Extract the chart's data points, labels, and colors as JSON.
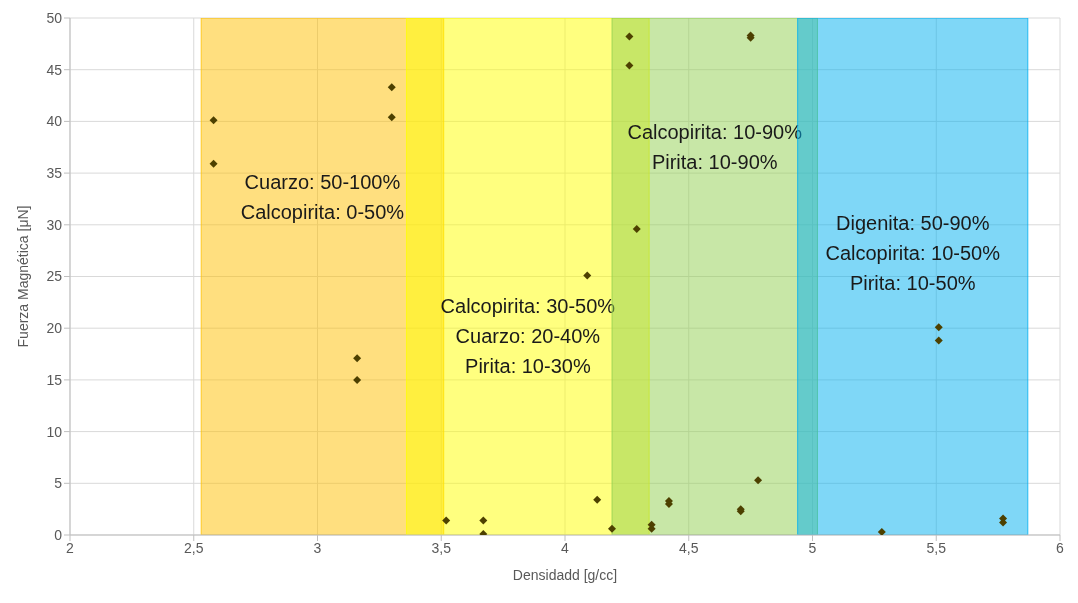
{
  "chart_data": {
    "type": "scatter",
    "xlabel": "Densidadd [g/cc]",
    "ylabel": "Fuerza Magnética [μN]",
    "xlim": [
      2,
      6
    ],
    "ylim": [
      0,
      50
    ],
    "xticks": [
      2,
      {
        "value": 2.5,
        "label": "2,5"
      },
      3,
      {
        "value": 3.5,
        "label": "3,5"
      },
      4,
      {
        "value": 4.5,
        "label": "4,5"
      },
      5,
      {
        "value": 5.5,
        "label": "5,5"
      },
      6
    ],
    "yticks": [
      0,
      5,
      10,
      15,
      20,
      25,
      30,
      35,
      40,
      45,
      50
    ],
    "grid": true,
    "marker": "diamond",
    "series": [
      {
        "color": "#4d4000",
        "x": [
          2.58,
          2.58,
          3.3,
          3.3,
          3.16,
          3.16,
          3.52,
          3.67,
          3.67,
          4.09,
          4.13,
          4.19,
          4.26,
          4.26,
          4.29,
          4.35,
          4.35,
          4.42,
          4.42,
          4.71,
          4.71,
          4.75,
          4.75,
          4.78,
          5.28,
          5.51,
          5.51,
          5.77,
          5.77
        ],
        "values": [
          40.1,
          35.9,
          43.3,
          40.4,
          17.1,
          15,
          1.4,
          1.4,
          0.1,
          25.1,
          3.4,
          0.6,
          48.2,
          45.4,
          29.6,
          1,
          0.6,
          3,
          3.3,
          2.3,
          2.5,
          48.3,
          48.1,
          5.3,
          0.3,
          20.1,
          18.8,
          1.6,
          1.2
        ]
      }
    ],
    "bands": [
      {
        "axis": "x",
        "from": 2.53,
        "to": 3.51,
        "color": "#ffc000",
        "label": "Cuarzo: 50-100%\nCalcopirita: 0-50%"
      },
      {
        "axis": "x",
        "from": 3.36,
        "to": 4.34,
        "color": "#ffff00",
        "label": "Calcopirita: 30-50%\nCuarzo: 20-40%\nPirita: 10-30%"
      },
      {
        "axis": "x",
        "from": 4.19,
        "to": 5.02,
        "color": "#92d050",
        "label": "Calcopirita: 10-90%\nPirita: 10-90%"
      },
      {
        "axis": "x",
        "from": 4.94,
        "to": 5.87,
        "color": "#00b0f0",
        "label": "Digenita: 50-90%\nCalcopirita: 10-50%\nPirita: 10-50%"
      }
    ]
  }
}
